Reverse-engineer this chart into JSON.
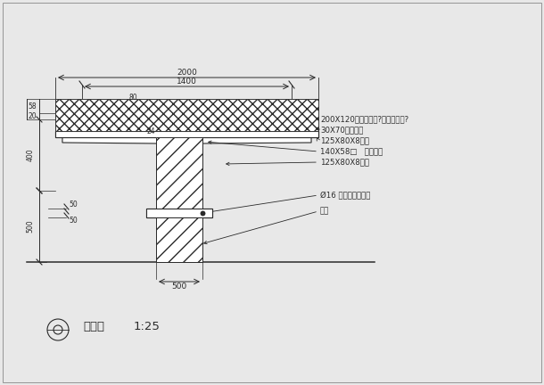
{
  "bg_color": "#e8e8e8",
  "line_color": "#2a2a2a",
  "title": "剑面图",
  "scale": "1:25",
  "annotations": [
    "200X120冷云杉木方?作防腐处理?",
    "30X70木板收边",
    "125X80X8角锂",
    "140X58□   槽锂反扣",
    "125X80X8槽锂"
  ],
  "anchor_text": "Ø16 膨胀锦钗标固定",
  "bottom_text": "池壁"
}
